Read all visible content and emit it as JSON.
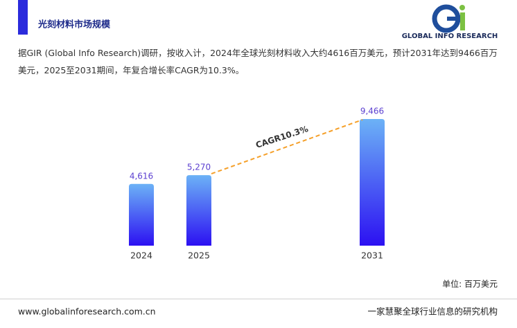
{
  "header": {
    "title": "光刻材料市场规模",
    "logo_text": "GLOBAL INFO RESEARCH"
  },
  "description": "据GIR (Global Info Research)调研，按收入计，2024年全球光刻材料收入大约4616百万美元，预计2031年达到9466百万美元，2025至2031期间，年复合增长率CAGR为10.3%。",
  "chart_data": {
    "type": "bar",
    "categories": [
      "2024",
      "2025",
      "2031"
    ],
    "values": [
      4616,
      5270,
      9466
    ],
    "value_labels": [
      "4,616",
      "5,270",
      "9,466"
    ],
    "gradient": [
      "#6cb2f6",
      "#2c10f2"
    ],
    "label_color": "#5b3fd0",
    "annotation": "CAGR10.3%",
    "annotation_color": "#f5a02a",
    "unit": "单位: 百万美元"
  },
  "footer": {
    "website": "www.globalinforesearch.com.cn",
    "slogan": "一家慧聚全球行业信息的研究机构"
  }
}
